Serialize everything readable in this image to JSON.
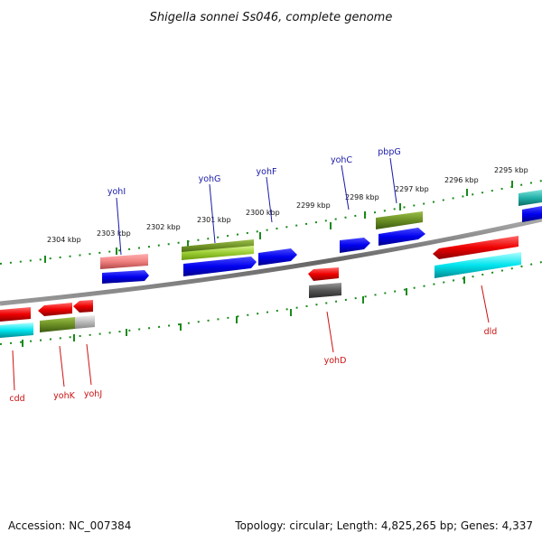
{
  "title": "Shigella sonnei Ss046, complete genome",
  "footer": {
    "accession": "Accession: NC_007384",
    "summary": "Topology: circular; Length: 4,825,265 bp; Genes: 4,337"
  },
  "scale_labels": [
    "2304 kbp",
    "2303 kbp",
    "2302 kbp",
    "2301 kbp",
    "2300 kbp",
    "2299 kbp",
    "2298 kbp",
    "2297 kbp",
    "2296 kbp",
    "2295 kbp"
  ],
  "forward_gene_labels": [
    "yohI",
    "yohG",
    "yohF",
    "yohC",
    "pbpG"
  ],
  "reverse_gene_labels": [
    "cdd",
    "yohK",
    "yohJ",
    "yohD",
    "dld"
  ],
  "colors": {
    "backbone": "#777777",
    "tick_marks": "#1a8a1a",
    "forward_cds": "#0000ee",
    "reverse_cds": "#ee0000",
    "forward_label": "#1a1aa8",
    "reverse_label": "#cc1111",
    "olive_feature": "#6b8e23",
    "lime_feature": "#9acd32",
    "pink_feature": "#f08080",
    "cyan_feature": "#00e5ee",
    "teal_feature": "#20b2aa",
    "grey_feature": "#bbbbbb",
    "dark_feature": "#555555"
  }
}
